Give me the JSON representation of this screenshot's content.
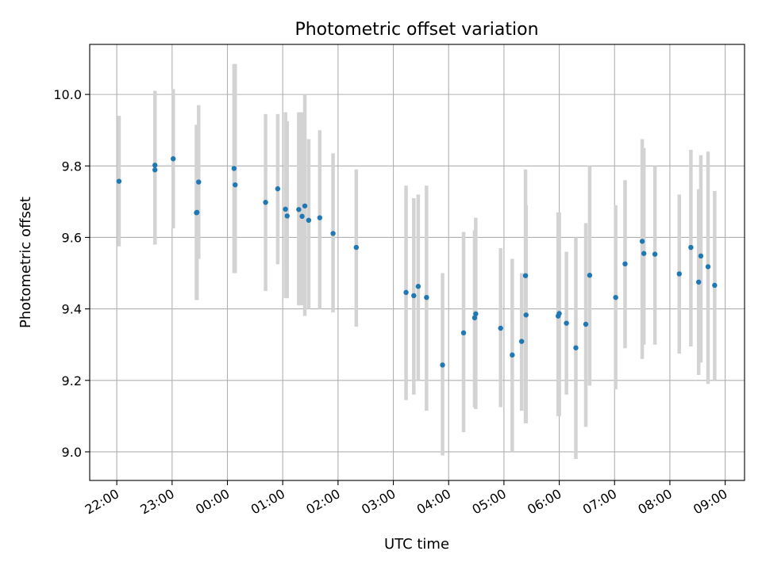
{
  "chart_data": {
    "type": "scatter",
    "title": "Photometric offset variation",
    "xlabel": "UTC time",
    "ylabel": "Photometric offset",
    "x_axis_type": "time",
    "x_tick_labels": [
      "22:00",
      "23:00",
      "00:00",
      "01:00",
      "02:00",
      "03:00",
      "04:00",
      "05:00",
      "06:00",
      "07:00",
      "08:00",
      "09:00"
    ],
    "x_tick_hours": [
      -2,
      -1,
      0,
      1,
      2,
      3,
      4,
      5,
      6,
      7,
      8,
      9
    ],
    "xlim_hours": [
      -2.49,
      9.35
    ],
    "ylim": [
      8.92,
      10.14
    ],
    "y_ticks": [
      9.0,
      9.2,
      9.4,
      9.6,
      9.8,
      10.0
    ],
    "y_tick_labels": [
      "9.0",
      "9.2",
      "9.4",
      "9.6",
      "9.8",
      "10.0"
    ],
    "grid": true,
    "colors": {
      "points": "#1f77b4",
      "error_bars": "#d3d3d3",
      "grid": "#b0b0b0",
      "axes": "#000000"
    },
    "series": [
      {
        "x_hours": [
          -1.96,
          -1.31,
          -1.31,
          -0.98,
          -0.56,
          -0.55,
          -0.52,
          0.12,
          0.14,
          0.69,
          0.91,
          1.05,
          1.08,
          1.29,
          1.35,
          1.4,
          1.47,
          1.67,
          1.91,
          2.33,
          3.23,
          3.37,
          3.45,
          3.6,
          3.89,
          4.27,
          4.47,
          4.49,
          4.94,
          5.15,
          5.32,
          5.39,
          5.4,
          5.98,
          6.0,
          6.13,
          6.3,
          6.48,
          6.55,
          7.02,
          7.19,
          7.5,
          7.53,
          7.73,
          8.17,
          8.38,
          8.52,
          8.56,
          8.69,
          8.81
        ],
        "y": [
          9.757,
          9.802,
          9.789,
          9.82,
          9.669,
          9.67,
          9.755,
          9.793,
          9.747,
          9.698,
          9.736,
          9.679,
          9.66,
          9.678,
          9.659,
          9.688,
          9.648,
          9.655,
          9.611,
          9.572,
          9.446,
          9.437,
          9.463,
          9.432,
          9.243,
          9.333,
          9.375,
          9.386,
          9.346,
          9.271,
          9.309,
          9.493,
          9.383,
          9.38,
          9.387,
          9.36,
          9.291,
          9.357,
          9.494,
          9.432,
          9.526,
          9.589,
          9.555,
          9.553,
          9.498,
          9.572,
          9.475,
          9.548,
          9.518,
          9.466
        ],
        "y_err_low": [
          9.575,
          9.58,
          9.58,
          9.625,
          9.425,
          9.425,
          9.54,
          9.5,
          9.5,
          9.45,
          9.525,
          9.43,
          9.43,
          9.41,
          9.41,
          9.38,
          9.4,
          9.4,
          9.39,
          9.35,
          9.145,
          9.16,
          9.2,
          9.115,
          8.99,
          9.055,
          9.125,
          9.12,
          9.125,
          9.0,
          9.115,
          9.08,
          9.08,
          9.1,
          9.1,
          9.16,
          8.98,
          9.07,
          9.185,
          9.175,
          9.29,
          9.26,
          9.3,
          9.3,
          9.275,
          9.295,
          9.215,
          9.25,
          9.19,
          9.2
        ],
        "y_err_high": [
          9.94,
          10.01,
          10.01,
          10.015,
          9.915,
          9.915,
          9.97,
          10.085,
          10.085,
          9.945,
          9.945,
          9.95,
          9.925,
          9.95,
          9.95,
          10.0,
          9.875,
          9.9,
          9.835,
          9.79,
          9.745,
          9.71,
          9.72,
          9.745,
          9.5,
          9.615,
          9.62,
          9.655,
          9.57,
          9.54,
          9.5,
          9.79,
          9.69,
          9.67,
          9.67,
          9.56,
          9.6,
          9.64,
          9.8,
          9.69,
          9.76,
          9.875,
          9.85,
          9.8,
          9.72,
          9.845,
          9.735,
          9.83,
          9.84,
          9.73
        ]
      }
    ]
  }
}
